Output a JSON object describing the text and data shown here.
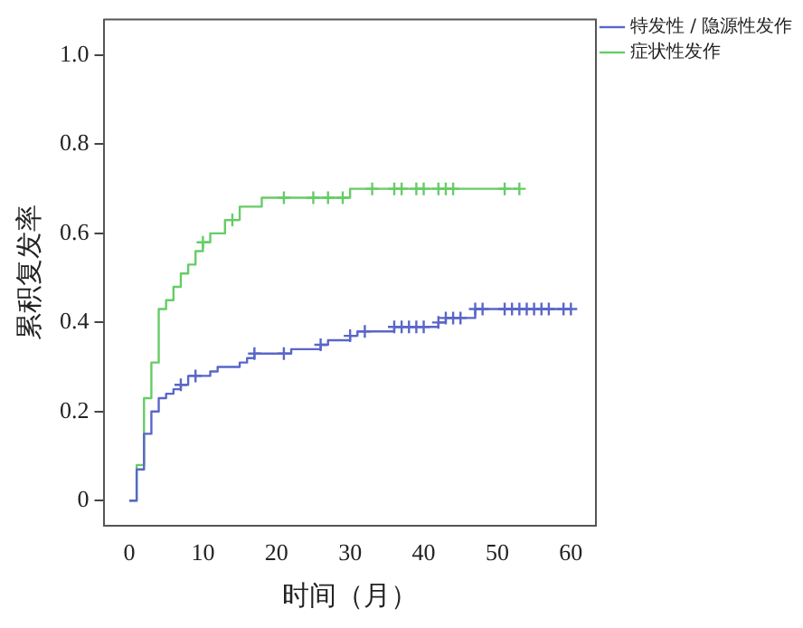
{
  "chart_data": {
    "type": "step",
    "xlabel": "时间（月）",
    "ylabel": "累积复发率",
    "xlim": [
      -3.5,
      63.4
    ],
    "ylim": [
      -0.056,
      1.08
    ],
    "xticks": [
      0,
      10,
      20,
      30,
      40,
      50,
      60
    ],
    "yticks": [
      0,
      0.2,
      0.4,
      0.6,
      0.8,
      {
        "value": 1.0,
        "label": "1.0"
      }
    ],
    "grid": false,
    "legend": "top right",
    "series": [
      {
        "name": "特发性 / 隐源性发作",
        "color": "#5a66c8",
        "marker": "none",
        "x": [
          0,
          1,
          2,
          3,
          4,
          5,
          6,
          7,
          8,
          9,
          11,
          12,
          14,
          15,
          16,
          17,
          22,
          23,
          26,
          27,
          30,
          31,
          36,
          42,
          43,
          47,
          60
        ],
        "values": [
          0,
          0.07,
          0.15,
          0.2,
          0.23,
          0.24,
          0.25,
          0.26,
          0.28,
          0.28,
          0.29,
          0.3,
          0.3,
          0.31,
          0.32,
          0.33,
          0.34,
          0.34,
          0.35,
          0.36,
          0.37,
          0.38,
          0.39,
          0.4,
          0.41,
          0.43,
          0.43
        ]
      },
      {
        "name": "症状性发作",
        "color": "#66cc66",
        "marker": "none",
        "x": [
          0,
          1,
          2,
          3,
          4,
          5,
          6,
          7,
          8,
          9,
          10,
          11,
          13,
          15,
          18,
          30,
          53
        ],
        "values": [
          0,
          0.08,
          0.23,
          0.31,
          0.43,
          0.45,
          0.48,
          0.51,
          0.53,
          0.56,
          0.58,
          0.6,
          0.63,
          0.66,
          0.68,
          0.7,
          0.7
        ]
      },
      {
        "color": "#5a66c8",
        "type": "scatter",
        "marker": "cross",
        "x": [
          7,
          9,
          17,
          21,
          26,
          30,
          32,
          36,
          37,
          38,
          39,
          40,
          42,
          43,
          44,
          45,
          47,
          48,
          51,
          52,
          53,
          54,
          55,
          56,
          57,
          59,
          60
        ],
        "values": [
          0.26,
          0.28,
          0.33,
          0.33,
          0.35,
          0.37,
          0.38,
          0.39,
          0.39,
          0.39,
          0.39,
          0.39,
          0.4,
          0.41,
          0.41,
          0.41,
          0.43,
          0.43,
          0.43,
          0.43,
          0.43,
          0.43,
          0.43,
          0.43,
          0.43,
          0.43,
          0.43
        ]
      },
      {
        "color": "#66cc66",
        "type": "scatter",
        "marker": "cross",
        "x": [
          10,
          14,
          21,
          25,
          27,
          29,
          33,
          36,
          37,
          39,
          40,
          42,
          43,
          44,
          51,
          53
        ],
        "values": [
          0.58,
          0.63,
          0.68,
          0.68,
          0.68,
          0.68,
          0.7,
          0.7,
          0.7,
          0.7,
          0.7,
          0.7,
          0.7,
          0.7,
          0.7,
          0.7
        ]
      }
    ]
  }
}
